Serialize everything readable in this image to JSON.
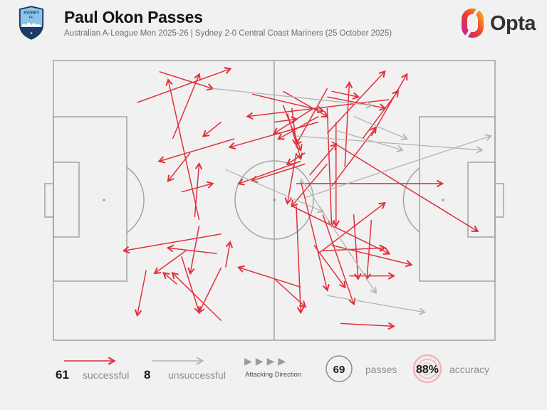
{
  "header": {
    "title": "Paul Okon Passes",
    "subtitle": "Australian A-League Men 2025-26 | Sydney 2-0 Central Coast Mariners (25 October 2025)",
    "badge": {
      "team": "Sydney FC",
      "line1": "SYDNEY",
      "line2": "FC",
      "star": "★"
    },
    "brand": "Opta"
  },
  "legend": {
    "successful_count": "61",
    "successful_label": "successful",
    "unsuccessful_count": "8",
    "unsuccessful_label": "unsuccessful",
    "attacking_direction_label": "Attacking Direction",
    "passes_count": "69",
    "passes_label": "passes",
    "accuracy_value": "88%",
    "accuracy_label": "accuracy"
  },
  "colors": {
    "successful": "#e0313a",
    "unsuccessful": "#b4b4b4",
    "pitch_line": "#a3a3a3",
    "background": "#f1f1f2",
    "title_text": "#141414",
    "subtitle_text": "#6e6e6e",
    "accuracy_ring": "#f0b3b7"
  },
  "chart_data": {
    "type": "scatter",
    "subtype": "football-pass-map",
    "title": "Paul Okon Passes",
    "coordinate_system": "percent of pitch; x left-to-right (attacking direction), y top-to-bottom",
    "attacking_direction": "left-to-right",
    "totals": {
      "passes": 69,
      "accuracy_pct": 88
    },
    "series": [
      {
        "name": "successful",
        "color": "#e0313a",
        "count": 61,
        "passes": [
          [
            19,
            15,
            40,
            3
          ],
          [
            33,
            57,
            26,
            7
          ],
          [
            27,
            28,
            33,
            5
          ],
          [
            24,
            4,
            36,
            10
          ],
          [
            76,
            14,
            44,
            20
          ],
          [
            60,
            22,
            40,
            31
          ],
          [
            38,
            22,
            34,
            27
          ],
          [
            41,
            28,
            24,
            36
          ],
          [
            31,
            33,
            26,
            43
          ],
          [
            29,
            47,
            36,
            44
          ],
          [
            32,
            56,
            33,
            37
          ],
          [
            62,
            13,
            75,
            17
          ],
          [
            62,
            26,
            75,
            4
          ],
          [
            66,
            38,
            67,
            8
          ],
          [
            63,
            11,
            69,
            13
          ],
          [
            72,
            27,
            80,
            5
          ],
          [
            70,
            28,
            78,
            11
          ],
          [
            50,
            22,
            55,
            21
          ],
          [
            59,
            17,
            50,
            26
          ],
          [
            60,
            20,
            51,
            28
          ],
          [
            62,
            10,
            55,
            30
          ],
          [
            54,
            17,
            55,
            30
          ],
          [
            53,
            19,
            56,
            35
          ],
          [
            57,
            33,
            53,
            37
          ],
          [
            56,
            36,
            42,
            44
          ],
          [
            57,
            37,
            45,
            43
          ],
          [
            62,
            37,
            54,
            52
          ],
          [
            55,
            33,
            53,
            51
          ],
          [
            52,
            16,
            56,
            32
          ],
          [
            45,
            12,
            61,
            18
          ],
          [
            52,
            11,
            62,
            20
          ],
          [
            58,
            41,
            64,
            30
          ],
          [
            63,
            45,
            73,
            24
          ],
          [
            55,
            44,
            88,
            44
          ],
          [
            63,
            29,
            96,
            61
          ],
          [
            60,
            69,
            75,
            51
          ],
          [
            62,
            17,
            63,
            59
          ],
          [
            64,
            22,
            64,
            59
          ],
          [
            54,
            52,
            76,
            69
          ],
          [
            63,
            66,
            81,
            73
          ],
          [
            67,
            77,
            77,
            77
          ],
          [
            65,
            94,
            77,
            95
          ],
          [
            61,
            68,
            75,
            67
          ],
          [
            68,
            55,
            69,
            78
          ],
          [
            72,
            57,
            71,
            78
          ],
          [
            55,
            52,
            56,
            90
          ],
          [
            50,
            78,
            57,
            88
          ],
          [
            61,
            55,
            68,
            87
          ],
          [
            56,
            43,
            62,
            82
          ],
          [
            59,
            66,
            66,
            81
          ],
          [
            38,
            62,
            16,
            68
          ],
          [
            30,
            68,
            23,
            76
          ],
          [
            28,
            80,
            25,
            76
          ],
          [
            21,
            75,
            19,
            91
          ],
          [
            33,
            59,
            31,
            76
          ],
          [
            39,
            74,
            40,
            65
          ],
          [
            29,
            70,
            33,
            90
          ],
          [
            38,
            74,
            33,
            90
          ],
          [
            56,
            81,
            42,
            74
          ],
          [
            38,
            93,
            27,
            76
          ],
          [
            37,
            69,
            26,
            67
          ]
        ]
      },
      {
        "name": "unsuccessful",
        "color": "#b4b4b4",
        "count": 8,
        "passes": [
          [
            36,
            10,
            72,
            16
          ],
          [
            39,
            39,
            61,
            54
          ],
          [
            56,
            42,
            73,
            83
          ],
          [
            62,
            84,
            84,
            90
          ],
          [
            68,
            20,
            80,
            28
          ],
          [
            64,
            25,
            79,
            32
          ],
          [
            57,
            49,
            99,
            27
          ],
          [
            55,
            27,
            97,
            32
          ]
        ]
      }
    ]
  }
}
